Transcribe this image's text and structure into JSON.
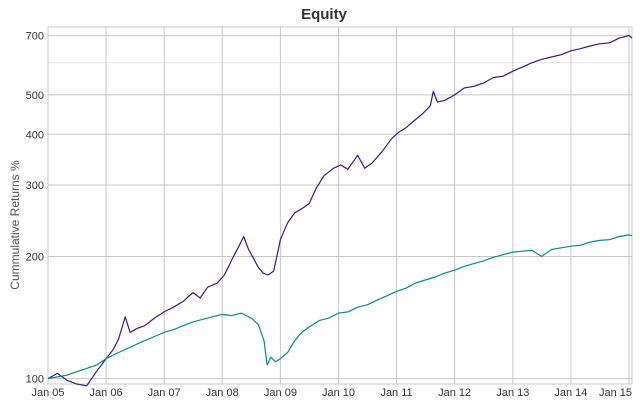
{
  "chart_data": {
    "type": "line",
    "title": "Equity",
    "ylabel": "Cummulative Returns %",
    "xlabel": "",
    "y_scale": "log",
    "ylim": [
      97,
      735
    ],
    "xlim": [
      "2005-01-01",
      "2015-01-20"
    ],
    "x_ticks": [
      {
        "label": "Jan 05",
        "date": "2005-01-01"
      },
      {
        "label": "Jan 06",
        "date": "2006-01-01"
      },
      {
        "label": "Jan 07",
        "date": "2007-01-01"
      },
      {
        "label": "Jan 08",
        "date": "2008-01-01"
      },
      {
        "label": "Jan 09",
        "date": "2009-01-01"
      },
      {
        "label": "Jan 10",
        "date": "2010-01-01"
      },
      {
        "label": "Jan 11",
        "date": "2011-01-01"
      },
      {
        "label": "Jan 12",
        "date": "2012-01-01"
      },
      {
        "label": "Jan 13",
        "date": "2013-01-01"
      },
      {
        "label": "Jan 14",
        "date": "2014-01-01"
      },
      {
        "label": "Jan 15",
        "date": "2015-01-01"
      }
    ],
    "y_ticks": [
      100,
      200,
      300,
      400,
      500,
      700
    ],
    "grid": true,
    "series": [
      {
        "color": "#3f1a6e",
        "points": [
          [
            "2005-01-01",
            100
          ],
          [
            "2005-03-01",
            103
          ],
          [
            "2005-05-01",
            99
          ],
          [
            "2005-07-01",
            97
          ],
          [
            "2005-09-01",
            96
          ],
          [
            "2005-11-01",
            104
          ],
          [
            "2006-01-01",
            112
          ],
          [
            "2006-02-15",
            118
          ],
          [
            "2006-03-20",
            125
          ],
          [
            "2006-05-01",
            142
          ],
          [
            "2006-06-01",
            130
          ],
          [
            "2006-07-15",
            133
          ],
          [
            "2006-09-01",
            135
          ],
          [
            "2006-11-01",
            141
          ],
          [
            "2007-01-01",
            146
          ],
          [
            "2007-03-01",
            150
          ],
          [
            "2007-05-01",
            155
          ],
          [
            "2007-07-01",
            163
          ],
          [
            "2007-08-15",
            158
          ],
          [
            "2007-10-01",
            168
          ],
          [
            "2007-12-01",
            172
          ],
          [
            "2008-01-15",
            180
          ],
          [
            "2008-03-01",
            196
          ],
          [
            "2008-04-15",
            212
          ],
          [
            "2008-05-15",
            224
          ],
          [
            "2008-06-15",
            208
          ],
          [
            "2008-07-15",
            198
          ],
          [
            "2008-08-15",
            188
          ],
          [
            "2008-09-15",
            182
          ],
          [
            "2008-10-15",
            180
          ],
          [
            "2008-11-20",
            184
          ],
          [
            "2009-01-01",
            220
          ],
          [
            "2009-02-15",
            242
          ],
          [
            "2009-04-01",
            256
          ],
          [
            "2009-05-15",
            262
          ],
          [
            "2009-07-01",
            270
          ],
          [
            "2009-08-15",
            295
          ],
          [
            "2009-10-01",
            316
          ],
          [
            "2009-12-01",
            330
          ],
          [
            "2010-01-15",
            336
          ],
          [
            "2010-03-01",
            328
          ],
          [
            "2010-05-01",
            355
          ],
          [
            "2010-06-15",
            330
          ],
          [
            "2010-08-01",
            340
          ],
          [
            "2010-10-01",
            362
          ],
          [
            "2010-12-01",
            390
          ],
          [
            "2011-01-15",
            405
          ],
          [
            "2011-03-01",
            415
          ],
          [
            "2011-05-01",
            435
          ],
          [
            "2011-06-15",
            450
          ],
          [
            "2011-08-01",
            470
          ],
          [
            "2011-08-20",
            510
          ],
          [
            "2011-09-15",
            480
          ],
          [
            "2011-11-01",
            485
          ],
          [
            "2012-01-01",
            500
          ],
          [
            "2012-03-01",
            520
          ],
          [
            "2012-05-01",
            525
          ],
          [
            "2012-07-01",
            535
          ],
          [
            "2012-09-01",
            552
          ],
          [
            "2012-11-01",
            556
          ],
          [
            "2013-01-01",
            572
          ],
          [
            "2013-03-01",
            585
          ],
          [
            "2013-05-01",
            600
          ],
          [
            "2013-07-01",
            612
          ],
          [
            "2013-09-01",
            620
          ],
          [
            "2013-11-01",
            628
          ],
          [
            "2014-01-01",
            642
          ],
          [
            "2014-03-01",
            650
          ],
          [
            "2014-05-01",
            660
          ],
          [
            "2014-07-01",
            668
          ],
          [
            "2014-09-01",
            672
          ],
          [
            "2014-11-01",
            690
          ],
          [
            "2015-01-01",
            700
          ],
          [
            "2015-01-20",
            690
          ]
        ]
      },
      {
        "color": "#14858a",
        "points": [
          [
            "2005-01-01",
            100
          ],
          [
            "2005-03-01",
            101
          ],
          [
            "2005-05-01",
            102
          ],
          [
            "2005-07-01",
            104
          ],
          [
            "2005-09-01",
            106
          ],
          [
            "2005-11-01",
            108
          ],
          [
            "2006-01-01",
            112
          ],
          [
            "2006-03-01",
            115
          ],
          [
            "2006-05-01",
            118
          ],
          [
            "2006-07-01",
            121
          ],
          [
            "2006-09-01",
            124
          ],
          [
            "2006-11-01",
            127
          ],
          [
            "2007-01-01",
            130
          ],
          [
            "2007-03-01",
            132
          ],
          [
            "2007-05-01",
            135
          ],
          [
            "2007-07-01",
            138
          ],
          [
            "2007-09-01",
            140
          ],
          [
            "2007-11-01",
            142
          ],
          [
            "2008-01-01",
            144
          ],
          [
            "2008-03-01",
            143
          ],
          [
            "2008-05-01",
            145
          ],
          [
            "2008-07-01",
            141
          ],
          [
            "2008-08-15",
            136
          ],
          [
            "2008-09-20",
            124
          ],
          [
            "2008-10-10",
            108
          ],
          [
            "2008-11-01",
            113
          ],
          [
            "2008-12-01",
            110
          ],
          [
            "2009-01-01",
            112
          ],
          [
            "2009-02-15",
            116
          ],
          [
            "2009-04-01",
            124
          ],
          [
            "2009-05-15",
            130
          ],
          [
            "2009-07-01",
            134
          ],
          [
            "2009-09-01",
            139
          ],
          [
            "2009-11-01",
            141
          ],
          [
            "2010-01-01",
            145
          ],
          [
            "2010-03-01",
            146
          ],
          [
            "2010-05-01",
            150
          ],
          [
            "2010-07-01",
            152
          ],
          [
            "2010-09-01",
            156
          ],
          [
            "2010-11-01",
            160
          ],
          [
            "2011-01-01",
            164
          ],
          [
            "2011-03-01",
            167
          ],
          [
            "2011-05-01",
            172
          ],
          [
            "2011-07-01",
            175
          ],
          [
            "2011-09-01",
            178
          ],
          [
            "2011-11-01",
            182
          ],
          [
            "2012-01-01",
            185
          ],
          [
            "2012-03-01",
            189
          ],
          [
            "2012-05-01",
            192
          ],
          [
            "2012-07-01",
            195
          ],
          [
            "2012-09-01",
            199
          ],
          [
            "2012-11-01",
            202
          ],
          [
            "2013-01-01",
            205
          ],
          [
            "2013-03-01",
            206
          ],
          [
            "2013-05-01",
            207
          ],
          [
            "2013-07-01",
            200
          ],
          [
            "2013-09-01",
            208
          ],
          [
            "2013-11-01",
            210
          ],
          [
            "2014-01-01",
            212
          ],
          [
            "2014-03-01",
            213
          ],
          [
            "2014-05-01",
            217
          ],
          [
            "2014-07-01",
            219
          ],
          [
            "2014-09-01",
            220
          ],
          [
            "2014-11-01",
            224
          ],
          [
            "2015-01-01",
            226
          ],
          [
            "2015-01-20",
            225
          ]
        ]
      }
    ]
  }
}
